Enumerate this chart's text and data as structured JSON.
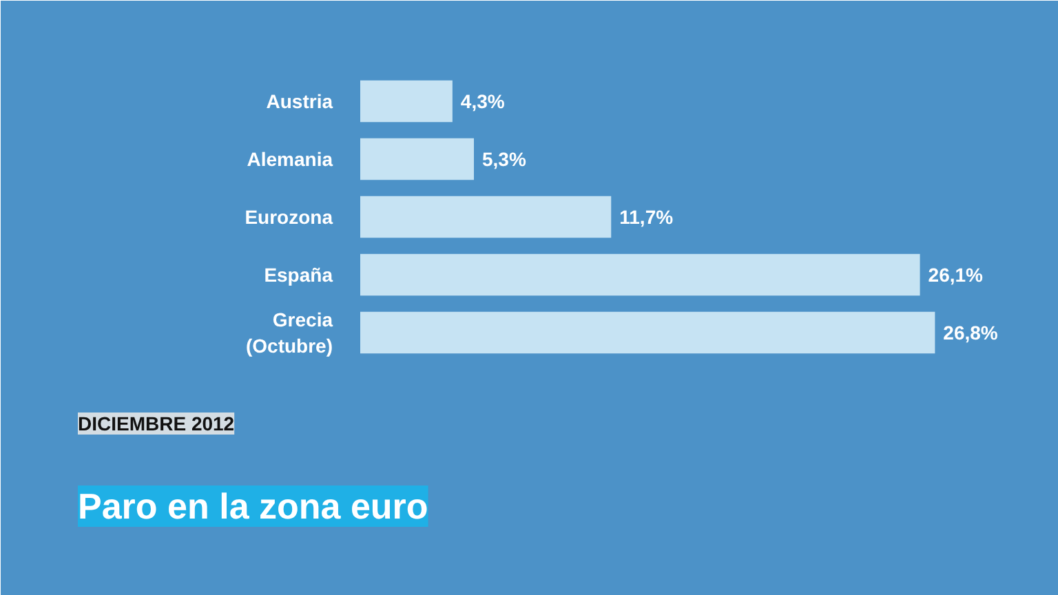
{
  "chart_data": {
    "type": "bar",
    "orientation": "horizontal",
    "title": "Paro en la zona euro",
    "subtitle": "DICIEMBRE 2012",
    "categories": [
      "Austria",
      "Alemania",
      "Eurozona",
      "España",
      "Grecia\n(Octubre)"
    ],
    "values": [
      4.3,
      5.3,
      11.7,
      26.1,
      26.8
    ],
    "value_labels": [
      "4,3%",
      "5,3%",
      "11,7%",
      "26,1%",
      "26,8%"
    ],
    "color": "#c6e3f3",
    "xlim": [
      0,
      30
    ],
    "tick_labels": "y",
    "grid": false
  }
}
